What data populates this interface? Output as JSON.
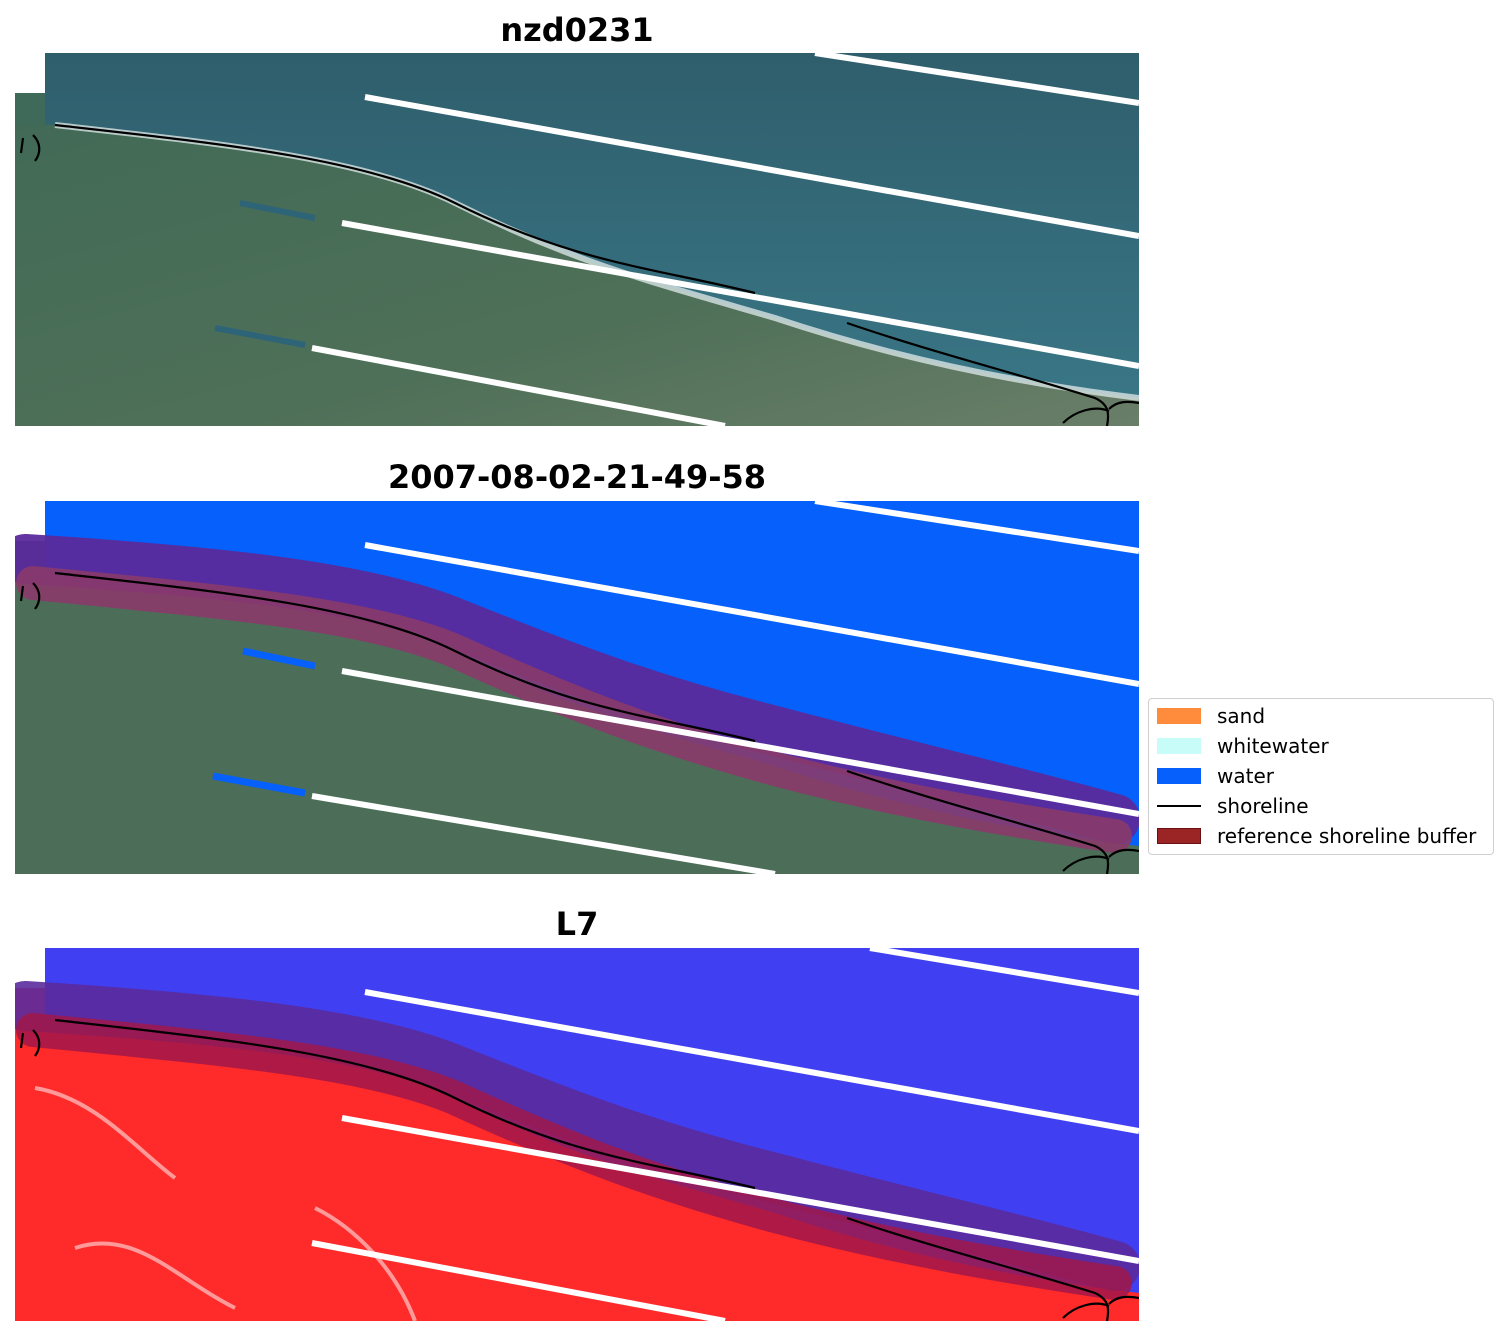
{
  "panels": [
    {
      "title": "nzd0231"
    },
    {
      "title": "2007-08-02-21-49-58"
    },
    {
      "title": "L7"
    }
  ],
  "colors": {
    "sand": "#ff8c3c",
    "whitewater": "#c8fcf8",
    "water": "#0560fc",
    "shoreline": "#000000",
    "buffer": "#9b2525"
  },
  "legend": {
    "items": [
      {
        "label": "sand",
        "kind": "patch",
        "color": "#ff8c3c"
      },
      {
        "label": "whitewater",
        "kind": "patch",
        "color": "#c8fcf8"
      },
      {
        "label": "water",
        "kind": "patch",
        "color": "#0560fc"
      },
      {
        "label": "shoreline",
        "kind": "line",
        "color": "#000000"
      },
      {
        "label": "reference shoreline buffer",
        "kind": "patch",
        "color": "#9b2525"
      }
    ]
  }
}
